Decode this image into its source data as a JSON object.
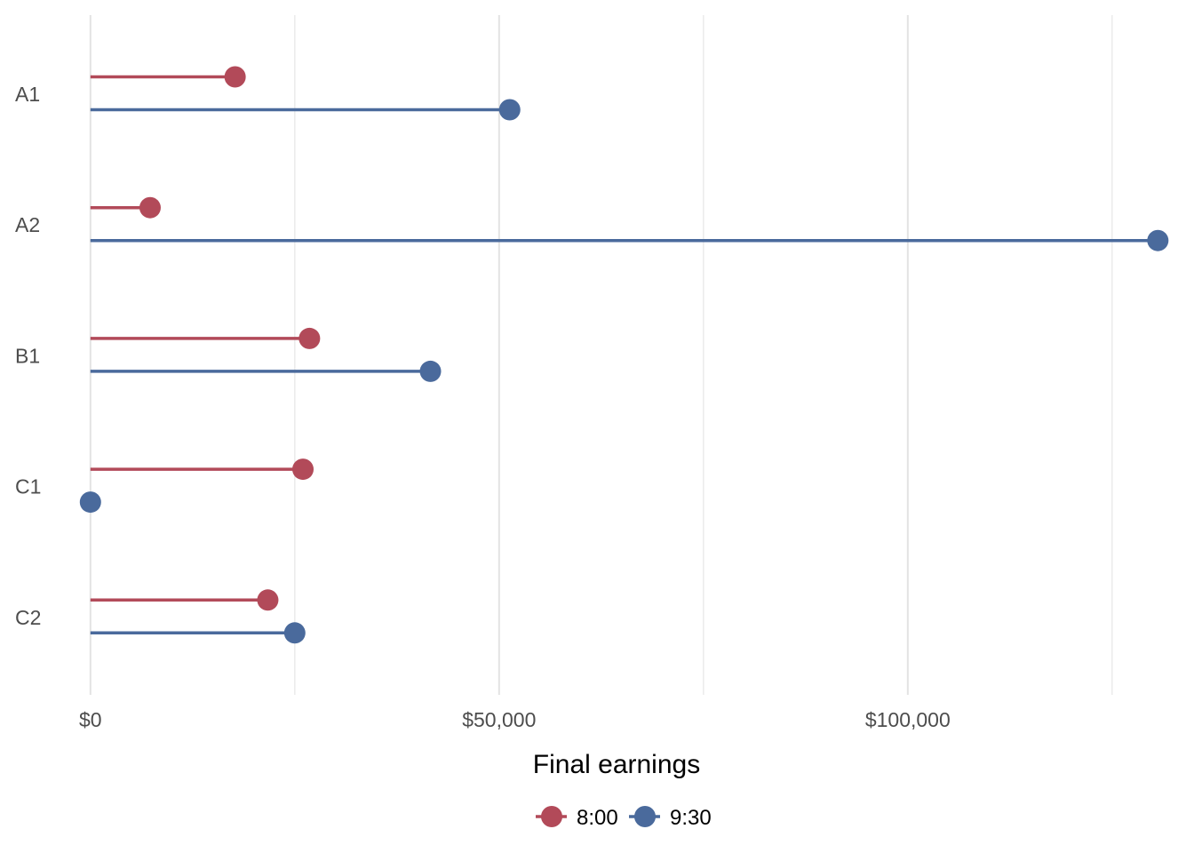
{
  "chart_data": {
    "type": "lollipop",
    "orientation": "horizontal",
    "categories": [
      "A1",
      "A2",
      "B1",
      "C1",
      "C2"
    ],
    "series": [
      {
        "name": "8:00",
        "color": "#b24a59",
        "values": [
          17700,
          7300,
          26800,
          26000,
          21700
        ]
      },
      {
        "name": "9:30",
        "color": "#4a6a9c",
        "values": [
          51300,
          130600,
          41600,
          0,
          25000
        ]
      }
    ],
    "x_ticks": [
      {
        "value": 0,
        "label": "$0"
      },
      {
        "value": 50000,
        "label": "$50,000"
      },
      {
        "value": 100000,
        "label": "$100,000"
      }
    ],
    "x_minor_ticks": [
      25000,
      75000,
      125000
    ],
    "xlim": [
      -4000,
      133500
    ],
    "xlabel": "Final earnings",
    "ylabel": "",
    "title": "",
    "grid": "vertical",
    "legend_position": "bottom"
  }
}
